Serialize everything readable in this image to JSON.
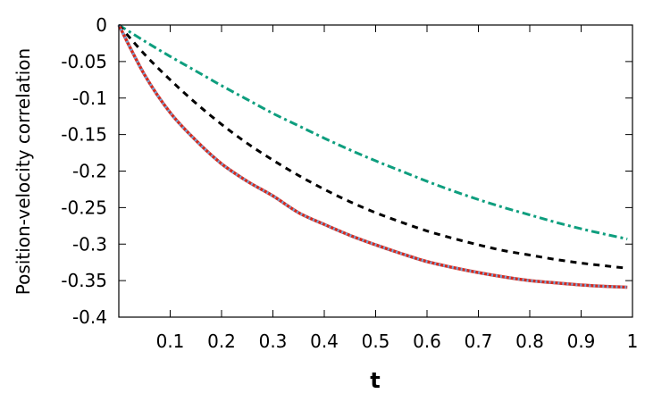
{
  "chart_data": {
    "type": "line",
    "title": "",
    "xlabel": "t",
    "ylabel": "Position-velocity correlation",
    "xlim": [
      0,
      1
    ],
    "ylim": [
      -0.4,
      0
    ],
    "x_ticks": [
      0.1,
      0.2,
      0.3,
      0.4,
      0.5,
      0.6,
      0.7,
      0.8,
      0.9,
      1
    ],
    "x_tick_labels": [
      "0.1",
      "0.2",
      "0.3",
      "0.4",
      "0.5",
      "0.6",
      "0.7",
      "0.8",
      "0.9",
      "1"
    ],
    "y_ticks": [
      0,
      -0.05,
      -0.1,
      -0.15,
      -0.2,
      -0.25,
      -0.3,
      -0.35,
      -0.4
    ],
    "y_tick_labels": [
      "0",
      "-0.05",
      "-0.1",
      "-0.15",
      "-0.2",
      "-0.25",
      "-0.3",
      "-0.35",
      "-0.4"
    ],
    "grid": false,
    "legend": "none",
    "x": [
      0,
      0.05,
      0.1,
      0.15,
      0.2,
      0.25,
      0.3,
      0.35,
      0.4,
      0.45,
      0.5,
      0.55,
      0.6,
      0.65,
      0.7,
      0.75,
      0.8,
      0.85,
      0.9,
      0.95,
      0.99
    ],
    "series": [
      {
        "color": "#0e9e7e",
        "style": "dash-dot",
        "values": [
          0,
          -0.022,
          -0.043,
          -0.063,
          -0.083,
          -0.102,
          -0.121,
          -0.138,
          -0.155,
          -0.171,
          -0.186,
          -0.2,
          -0.214,
          -0.227,
          -0.239,
          -0.25,
          -0.26,
          -0.27,
          -0.279,
          -0.287,
          -0.293
        ]
      },
      {
        "color": "#000000",
        "style": "dashed",
        "values": [
          0,
          -0.04,
          -0.075,
          -0.107,
          -0.136,
          -0.162,
          -0.185,
          -0.206,
          -0.225,
          -0.242,
          -0.257,
          -0.27,
          -0.282,
          -0.292,
          -0.301,
          -0.309,
          -0.315,
          -0.321,
          -0.326,
          -0.33,
          -0.333
        ]
      },
      {
        "color": "#d62a1e",
        "style": "solid",
        "values": [
          0,
          -0.068,
          -0.12,
          -0.158,
          -0.19,
          -0.214,
          -0.234,
          -0.257,
          -0.273,
          -0.288,
          -0.301,
          -0.313,
          -0.324,
          -0.332,
          -0.339,
          -0.345,
          -0.35,
          -0.353,
          -0.356,
          -0.358,
          -0.359
        ]
      },
      {
        "color": "#6fa8dc",
        "style": "dotted",
        "values": [
          0,
          -0.068,
          -0.12,
          -0.158,
          -0.19,
          -0.214,
          -0.234,
          -0.257,
          -0.273,
          -0.288,
          -0.301,
          -0.313,
          -0.324,
          -0.332,
          -0.339,
          -0.345,
          -0.35,
          -0.353,
          -0.356,
          -0.358,
          -0.359
        ]
      }
    ]
  }
}
